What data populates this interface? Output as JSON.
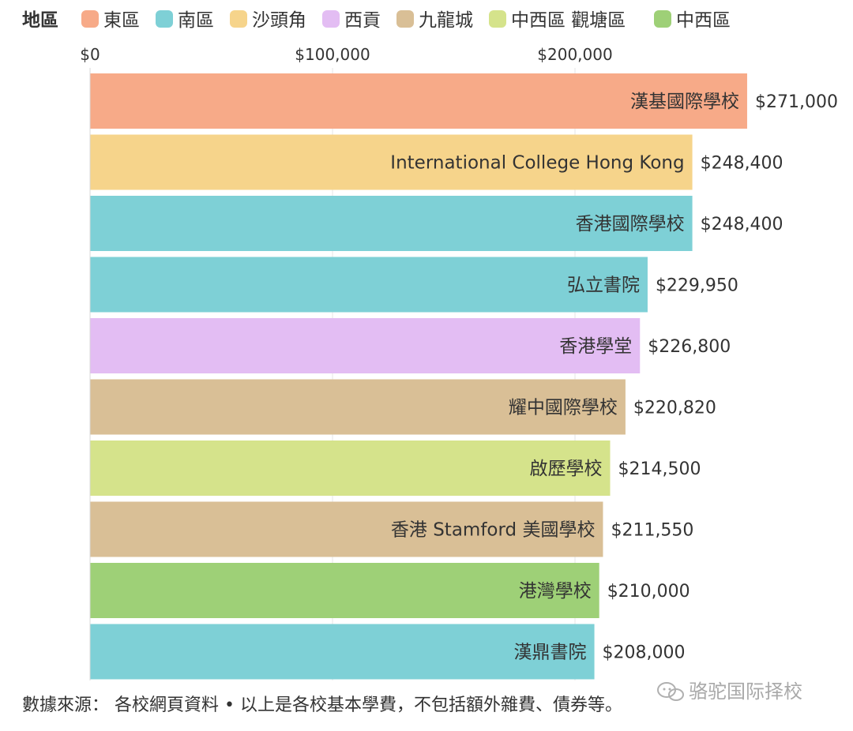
{
  "chart_data": {
    "type": "bar",
    "orientation": "horizontal",
    "legend": {
      "title": "地區",
      "placement": "top",
      "items": [
        {
          "label": "東區",
          "color": "#F7AA88"
        },
        {
          "label": "南區",
          "color": "#7ED0D6"
        },
        {
          "label": "沙頭角",
          "color": "#F6D48B"
        },
        {
          "label": "西貢",
          "color": "#E3BDF3"
        },
        {
          "label": "九龍城",
          "color": "#D9BF96"
        },
        {
          "label": "中西區 觀塘區",
          "color": "#D5E38B"
        },
        {
          "label": "中西區",
          "color": "#9ED077"
        }
      ]
    },
    "x_axis": {
      "ticks": [
        {
          "value": 0,
          "label": "$0"
        },
        {
          "value": 100000,
          "label": "$100,000"
        },
        {
          "value": 200000,
          "label": "$200,000"
        }
      ],
      "range": [
        0,
        300000
      ],
      "grid": true,
      "position": "top"
    },
    "bars": [
      {
        "label": "漢基國際學校",
        "value": 271000,
        "value_label": "$271,000",
        "district": "東區",
        "color": "#F7AA88"
      },
      {
        "label": "International College Hong Kong",
        "value": 248400,
        "value_label": "$248,400",
        "district": "沙頭角",
        "color": "#F6D48B"
      },
      {
        "label": "香港國際學校",
        "value": 248400,
        "value_label": "$248,400",
        "district": "南區",
        "color": "#7ED0D6"
      },
      {
        "label": "弘立書院",
        "value": 229950,
        "value_label": "$229,950",
        "district": "南區",
        "color": "#7ED0D6"
      },
      {
        "label": "香港學堂",
        "value": 226800,
        "value_label": "$226,800",
        "district": "西貢",
        "color": "#E3BDF3"
      },
      {
        "label": "耀中國際學校",
        "value": 220820,
        "value_label": "$220,820",
        "district": "九龍城",
        "color": "#D9BF96"
      },
      {
        "label": "啟歷學校",
        "value": 214500,
        "value_label": "$214,500",
        "district": "中西區 觀塘區",
        "color": "#D5E38B"
      },
      {
        "label": "香港 Stamford 美國學校",
        "value": 211550,
        "value_label": "$211,550",
        "district": "九龍城",
        "color": "#D9BF96"
      },
      {
        "label": "港灣學校",
        "value": 210000,
        "value_label": "$210,000",
        "district": "中西區",
        "color": "#9ED077"
      },
      {
        "label": "漢鼎書院",
        "value": 208000,
        "value_label": "$208,000",
        "district": "南區",
        "color": "#7ED0D6"
      }
    ],
    "footnote": "數據來源： 各校網頁資料 • 以上是各校基本學費，不包括額外雜費、債券等。"
  },
  "watermark": {
    "text": "骆驼国际择校",
    "icon": "wechat-icon"
  }
}
